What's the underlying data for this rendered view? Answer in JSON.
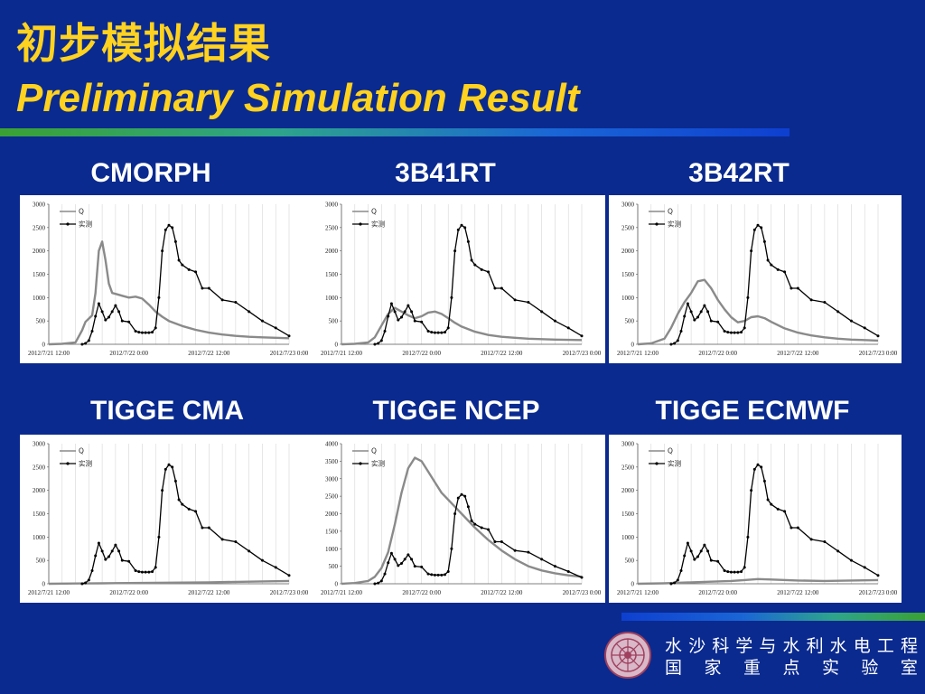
{
  "title_cn": "初步模拟结果",
  "title_en": "Preliminary Simulation Result",
  "lab_name": [
    "水沙科学与水利水电工程",
    "国家重点实验室"
  ],
  "colors": {
    "background": "#0a2a8f",
    "title": "#ffd21f",
    "sim_line": "#8a8a8a",
    "obs_line": "#000000"
  },
  "chart_data": [
    {
      "type": "line",
      "title": "CMORPH",
      "ylim": [
        0,
        3000
      ],
      "yticks": [
        0,
        500,
        1000,
        1500,
        2000,
        2500,
        3000
      ],
      "xticks": [
        "2012/7/21 12:00",
        "2012/7/22 0:00",
        "2012/7/22 12:00",
        "2012/7/23 0:00"
      ],
      "legend": [
        "Q",
        "实测"
      ],
      "legend_position": "top-left",
      "series": [
        {
          "name": "Q",
          "x": [
            0,
            2,
            4,
            5,
            5.5,
            6,
            6.5,
            7,
            7.5,
            8,
            8.5,
            9,
            9.5,
            10,
            11,
            12,
            13,
            14,
            15,
            16,
            17,
            18,
            20,
            22,
            24,
            26,
            28,
            30,
            32,
            34,
            36
          ],
          "values": [
            0,
            10,
            40,
            300,
            480,
            550,
            620,
            1100,
            2000,
            2200,
            1800,
            1300,
            1100,
            1080,
            1040,
            1000,
            1020,
            980,
            850,
            700,
            590,
            500,
            390,
            310,
            250,
            210,
            180,
            160,
            150,
            140,
            130
          ]
        },
        {
          "name": "实测",
          "x": [
            5,
            5.5,
            6,
            6.5,
            7,
            7.5,
            8,
            8.5,
            9,
            9.5,
            10,
            10.5,
            11,
            12,
            13,
            13.5,
            14,
            14.5,
            15,
            15.5,
            16,
            16.5,
            17,
            17.5,
            18,
            18.5,
            19,
            19.5,
            20,
            21,
            22,
            23,
            24,
            26,
            28,
            30,
            32,
            34,
            36
          ],
          "values": [
            0,
            20,
            80,
            280,
            600,
            870,
            700,
            520,
            580,
            700,
            830,
            700,
            500,
            480,
            280,
            260,
            250,
            250,
            250,
            260,
            350,
            1000,
            2000,
            2450,
            2550,
            2500,
            2200,
            1800,
            1700,
            1600,
            1550,
            1200,
            1200,
            950,
            900,
            700,
            500,
            350,
            180
          ]
        }
      ]
    },
    {
      "type": "line",
      "title": "3B41RT",
      "ylim": [
        0,
        3000
      ],
      "yticks": [
        0,
        500,
        1000,
        1500,
        2000,
        2500,
        3000
      ],
      "xticks": [
        "2012/7/21 12:00",
        "2012/7/22 0:00",
        "2012/7/22 12:00",
        "2012/7/23 0:00"
      ],
      "legend": [
        "Q",
        "实测"
      ],
      "legend_position": "top-left",
      "series": [
        {
          "name": "Q",
          "x": [
            0,
            2,
            4,
            5,
            6,
            7,
            8,
            9,
            10,
            11,
            12,
            13,
            14,
            15,
            16,
            17,
            18,
            20,
            22,
            24,
            26,
            28,
            30,
            32,
            34,
            36
          ],
          "values": [
            0,
            10,
            40,
            150,
            400,
            650,
            780,
            700,
            620,
            560,
            600,
            680,
            700,
            650,
            560,
            460,
            380,
            270,
            200,
            160,
            140,
            120,
            110,
            100,
            95,
            90
          ]
        },
        {
          "name": "实测",
          "x": [
            5,
            5.5,
            6,
            6.5,
            7,
            7.5,
            8,
            8.5,
            9,
            9.5,
            10,
            10.5,
            11,
            12,
            13,
            13.5,
            14,
            14.5,
            15,
            15.5,
            16,
            16.5,
            17,
            17.5,
            18,
            18.5,
            19,
            19.5,
            20,
            21,
            22,
            23,
            24,
            26,
            28,
            30,
            32,
            34,
            36
          ],
          "values": [
            0,
            20,
            80,
            280,
            600,
            870,
            700,
            520,
            580,
            700,
            830,
            700,
            500,
            480,
            280,
            260,
            250,
            250,
            250,
            260,
            350,
            1000,
            2000,
            2450,
            2550,
            2500,
            2200,
            1800,
            1700,
            1600,
            1550,
            1200,
            1200,
            950,
            900,
            700,
            500,
            350,
            180
          ]
        }
      ]
    },
    {
      "type": "line",
      "title": "3B42RT",
      "ylim": [
        0,
        3000
      ],
      "yticks": [
        0,
        500,
        1000,
        1500,
        2000,
        2500,
        3000
      ],
      "xticks": [
        "2012/7/21 12:00",
        "2012/7/22 0:00",
        "2012/7/22 12:00",
        "2012/7/23 0:00"
      ],
      "legend": [
        "Q",
        "实测"
      ],
      "legend_position": "top-left",
      "series": [
        {
          "name": "Q",
          "x": [
            0,
            2,
            4,
            5,
            6,
            7,
            8,
            9,
            10,
            11,
            12,
            13,
            14,
            15,
            16,
            17,
            18,
            19,
            20,
            22,
            24,
            26,
            28,
            30,
            32,
            34,
            36
          ],
          "values": [
            0,
            20,
            120,
            350,
            650,
            900,
            1100,
            1350,
            1380,
            1200,
            950,
            750,
            580,
            470,
            500,
            580,
            600,
            560,
            480,
            340,
            250,
            190,
            150,
            120,
            100,
            90,
            80
          ]
        },
        {
          "name": "实测",
          "x": [
            5,
            5.5,
            6,
            6.5,
            7,
            7.5,
            8,
            8.5,
            9,
            9.5,
            10,
            10.5,
            11,
            12,
            13,
            13.5,
            14,
            14.5,
            15,
            15.5,
            16,
            16.5,
            17,
            17.5,
            18,
            18.5,
            19,
            19.5,
            20,
            21,
            22,
            23,
            24,
            26,
            28,
            30,
            32,
            34,
            36
          ],
          "values": [
            0,
            20,
            80,
            280,
            600,
            870,
            700,
            520,
            580,
            700,
            830,
            700,
            500,
            480,
            280,
            260,
            250,
            250,
            250,
            260,
            350,
            1000,
            2000,
            2450,
            2550,
            2500,
            2200,
            1800,
            1700,
            1600,
            1550,
            1200,
            1200,
            950,
            900,
            700,
            500,
            350,
            180
          ]
        }
      ]
    },
    {
      "type": "line",
      "title": "TIGGE CMA",
      "ylim": [
        0,
        3000
      ],
      "yticks": [
        0,
        500,
        1000,
        1500,
        2000,
        2500,
        3000
      ],
      "xticks": [
        "2012/7/21 12:00",
        "2012/7/22 0:00",
        "2012/7/22 12:00",
        "2012/7/23 0:00"
      ],
      "legend": [
        "Q",
        "实测"
      ],
      "legend_position": "top-left",
      "series": [
        {
          "name": "Q",
          "x": [
            0,
            4,
            8,
            12,
            16,
            20,
            24,
            28,
            32,
            36
          ],
          "values": [
            0,
            5,
            10,
            15,
            20,
            25,
            30,
            40,
            50,
            60
          ]
        },
        {
          "name": "实测",
          "x": [
            5,
            5.5,
            6,
            6.5,
            7,
            7.5,
            8,
            8.5,
            9,
            9.5,
            10,
            10.5,
            11,
            12,
            13,
            13.5,
            14,
            14.5,
            15,
            15.5,
            16,
            16.5,
            17,
            17.5,
            18,
            18.5,
            19,
            19.5,
            20,
            21,
            22,
            23,
            24,
            26,
            28,
            30,
            32,
            34,
            36
          ],
          "values": [
            0,
            20,
            80,
            280,
            600,
            870,
            700,
            520,
            580,
            700,
            830,
            700,
            500,
            480,
            280,
            260,
            250,
            250,
            250,
            260,
            350,
            1000,
            2000,
            2450,
            2550,
            2500,
            2200,
            1800,
            1700,
            1600,
            1550,
            1200,
            1200,
            950,
            900,
            700,
            500,
            350,
            180
          ]
        }
      ]
    },
    {
      "type": "line",
      "title": "TIGGE NCEP",
      "ylim": [
        0,
        4000
      ],
      "yticks": [
        0,
        500,
        1000,
        1500,
        2000,
        2500,
        3000,
        3500,
        4000
      ],
      "xticks": [
        "2012/7/21 12:00",
        "2012/7/22 0:00",
        "2012/7/22 12:00",
        "2012/7/23 0:00"
      ],
      "legend": [
        "Q",
        "实测"
      ],
      "legend_position": "top-left",
      "series": [
        {
          "name": "Q",
          "x": [
            0,
            2,
            4,
            5,
            6,
            7,
            8,
            9,
            10,
            11,
            12,
            13,
            14,
            15,
            16,
            17,
            18,
            20,
            22,
            24,
            26,
            28,
            30,
            32,
            34,
            36
          ],
          "values": [
            0,
            20,
            80,
            200,
            450,
            900,
            1700,
            2600,
            3300,
            3600,
            3500,
            3200,
            2900,
            2600,
            2400,
            2200,
            2000,
            1600,
            1250,
            950,
            700,
            500,
            380,
            300,
            240,
            200
          ]
        },
        {
          "name": "实测",
          "x": [
            5,
            5.5,
            6,
            6.5,
            7,
            7.5,
            8,
            8.5,
            9,
            9.5,
            10,
            10.5,
            11,
            12,
            13,
            13.5,
            14,
            14.5,
            15,
            15.5,
            16,
            16.5,
            17,
            17.5,
            18,
            18.5,
            19,
            19.5,
            20,
            21,
            22,
            23,
            24,
            26,
            28,
            30,
            32,
            34,
            36
          ],
          "values": [
            0,
            20,
            80,
            280,
            600,
            870,
            700,
            520,
            580,
            700,
            830,
            700,
            500,
            480,
            280,
            260,
            250,
            250,
            250,
            260,
            350,
            1000,
            2000,
            2450,
            2550,
            2500,
            2200,
            1800,
            1700,
            1600,
            1550,
            1200,
            1200,
            950,
            900,
            700,
            500,
            350,
            180
          ]
        }
      ]
    },
    {
      "type": "line",
      "title": "TIGGE ECMWF",
      "ylim": [
        0,
        3000
      ],
      "yticks": [
        0,
        500,
        1000,
        1500,
        2000,
        2500,
        3000
      ],
      "xticks": [
        "2012/7/21 12:00",
        "2012/7/22 0:00",
        "2012/7/22 12:00",
        "2012/7/23 0:00"
      ],
      "legend": [
        "Q",
        "实测"
      ],
      "legend_position": "top-left",
      "series": [
        {
          "name": "Q",
          "x": [
            0,
            4,
            8,
            10,
            12,
            14,
            16,
            18,
            20,
            24,
            28,
            32,
            36
          ],
          "values": [
            0,
            10,
            30,
            40,
            50,
            60,
            80,
            100,
            90,
            70,
            60,
            70,
            80
          ]
        },
        {
          "name": "实测",
          "x": [
            5,
            5.5,
            6,
            6.5,
            7,
            7.5,
            8,
            8.5,
            9,
            9.5,
            10,
            10.5,
            11,
            12,
            13,
            13.5,
            14,
            14.5,
            15,
            15.5,
            16,
            16.5,
            17,
            17.5,
            18,
            18.5,
            19,
            19.5,
            20,
            21,
            22,
            23,
            24,
            26,
            28,
            30,
            32,
            34,
            36
          ],
          "values": [
            0,
            20,
            80,
            280,
            600,
            870,
            700,
            520,
            580,
            700,
            830,
            700,
            500,
            480,
            280,
            260,
            250,
            250,
            250,
            260,
            350,
            1000,
            2000,
            2450,
            2550,
            2500,
            2200,
            1800,
            1700,
            1600,
            1550,
            1200,
            1200,
            950,
            900,
            700,
            500,
            350,
            180
          ]
        }
      ]
    }
  ]
}
